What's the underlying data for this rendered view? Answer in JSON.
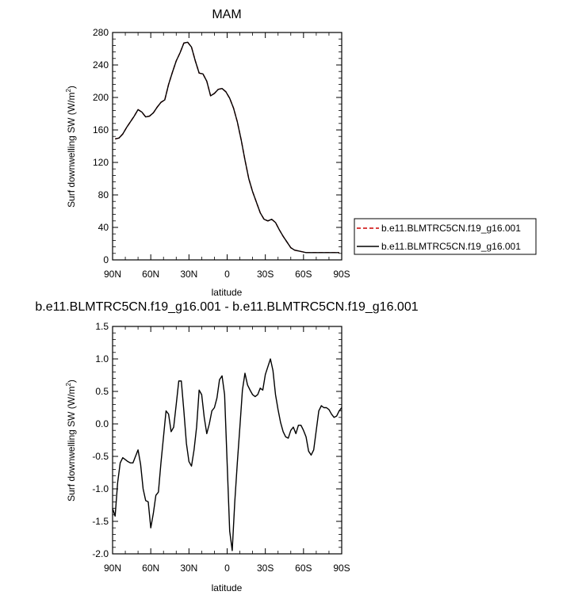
{
  "chart_data": [
    {
      "type": "line",
      "title": "MAM",
      "xlabel": "latitude",
      "ylabel": "Surf downwelling SW (W/m",
      "ylabel_sup": "2",
      "ylabel_close": ")",
      "xlim": [
        90,
        -90
      ],
      "ylim": [
        0,
        280
      ],
      "x_ticks": [
        90,
        60,
        30,
        0,
        -30,
        -60,
        -90
      ],
      "x_tick_labels": [
        "90N",
        "60N",
        "30N",
        "0",
        "30S",
        "60S",
        "90S"
      ],
      "y_ticks": [
        0,
        40,
        80,
        120,
        160,
        200,
        240,
        280
      ],
      "y_tick_labels": [
        "0",
        "40",
        "80",
        "120",
        "160",
        "200",
        "240",
        "280"
      ],
      "legend_position": "right",
      "series": [
        {
          "name": "b.e11.BLMTRC5CN.f19_g16.001",
          "color": "#cc0000",
          "dash": "dashed",
          "x": [
            88,
            85,
            82,
            79,
            76,
            73,
            70,
            67,
            64,
            61,
            58,
            55,
            52,
            49,
            46,
            43,
            40,
            37,
            34,
            31,
            28,
            25,
            22,
            19,
            16,
            13,
            10,
            7,
            4,
            1,
            -2,
            -5,
            -8,
            -11,
            -14,
            -17,
            -20,
            -23,
            -26,
            -29,
            -32,
            -35,
            -38,
            -41,
            -44,
            -47,
            -50,
            -53,
            -56,
            -59,
            -62,
            -65,
            -68,
            -71,
            -74,
            -77,
            -80,
            -83,
            -86,
            -88
          ],
          "y": [
            149,
            150,
            155,
            163,
            170,
            177,
            185,
            182,
            176,
            177,
            181,
            188,
            194,
            197,
            216,
            231,
            245,
            255,
            267,
            268,
            262,
            245,
            230,
            229,
            220,
            202,
            205,
            210,
            211,
            207,
            199,
            187,
            170,
            148,
            123,
            100,
            84,
            71,
            58,
            50,
            48,
            50,
            46,
            37,
            29,
            22,
            15,
            12,
            11,
            10,
            9,
            9,
            9,
            9,
            9,
            9,
            9,
            9,
            9,
            9
          ]
        },
        {
          "name": "b.e11.BLMTRC5CN.f19_g16.001",
          "color": "#000000",
          "dash": "solid",
          "x": [
            88,
            85,
            82,
            79,
            76,
            73,
            70,
            67,
            64,
            61,
            58,
            55,
            52,
            49,
            46,
            43,
            40,
            37,
            34,
            31,
            28,
            25,
            22,
            19,
            16,
            13,
            10,
            7,
            4,
            1,
            -2,
            -5,
            -8,
            -11,
            -14,
            -17,
            -20,
            -23,
            -26,
            -29,
            -32,
            -35,
            -38,
            -41,
            -44,
            -47,
            -50,
            -53,
            -56,
            -59,
            -62,
            -65,
            -68,
            -71,
            -74,
            -77,
            -80,
            -83,
            -86,
            -88
          ],
          "y": [
            149,
            150,
            155,
            163,
            170,
            177,
            185,
            182,
            176,
            177,
            181,
            188,
            194,
            197,
            216,
            231,
            245,
            255,
            267,
            268,
            262,
            245,
            230,
            229,
            220,
            202,
            205,
            210,
            211,
            207,
            199,
            187,
            170,
            148,
            123,
            100,
            84,
            71,
            58,
            50,
            48,
            50,
            46,
            37,
            29,
            22,
            15,
            12,
            11,
            10,
            9,
            9,
            9,
            9,
            9,
            9,
            9,
            9,
            9,
            9
          ]
        }
      ]
    },
    {
      "type": "line",
      "title": "b.e11.BLMTRC5CN.f19_g16.001 - b.e11.BLMTRC5CN.f19_g16.001",
      "xlabel": "latitude",
      "ylabel": "Surf downwelling SW (W/m",
      "ylabel_sup": "2",
      "ylabel_close": ")",
      "xlim": [
        90,
        -90
      ],
      "ylim": [
        -2.0,
        1.5
      ],
      "x_ticks": [
        90,
        60,
        30,
        0,
        -30,
        -60,
        -90
      ],
      "x_tick_labels": [
        "90N",
        "60N",
        "30N",
        "0",
        "30S",
        "60S",
        "90S"
      ],
      "y_ticks": [
        -2.0,
        -1.5,
        -1.0,
        -0.5,
        0.0,
        0.5,
        1.0,
        1.5
      ],
      "y_tick_labels": [
        "-2.0",
        "-1.5",
        "-1.0",
        "-0.5",
        "0.0",
        "0.5",
        "1.0",
        "1.5"
      ],
      "series": [
        {
          "color": "#000000",
          "dash": "solid",
          "x": [
            90,
            88,
            86,
            84,
            82,
            80,
            78,
            76,
            74,
            72,
            70,
            68,
            66,
            64,
            62,
            60,
            58,
            56,
            54,
            52,
            50,
            48,
            46,
            44,
            42,
            40,
            38,
            36,
            34,
            32,
            30,
            28,
            26,
            24,
            22,
            20,
            18,
            16,
            14,
            12,
            10,
            8,
            6,
            4,
            2,
            0,
            -2,
            -4,
            -6,
            -8,
            -10,
            -12,
            -14,
            -16,
            -18,
            -20,
            -22,
            -24,
            -26,
            -28,
            -30,
            -32,
            -34,
            -36,
            -38,
            -40,
            -42,
            -44,
            -46,
            -48,
            -50,
            -52,
            -54,
            -56,
            -58,
            -60,
            -62,
            -64,
            -66,
            -68,
            -70,
            -72,
            -74,
            -76,
            -78,
            -80,
            -82,
            -84,
            -86,
            -88,
            -90
          ],
          "y": [
            -1.3,
            -1.42,
            -0.9,
            -0.6,
            -0.52,
            -0.55,
            -0.58,
            -0.6,
            -0.6,
            -0.5,
            -0.4,
            -0.62,
            -1.0,
            -1.18,
            -1.2,
            -1.6,
            -1.38,
            -1.1,
            -1.05,
            -0.6,
            -0.2,
            0.2,
            0.15,
            -0.12,
            -0.05,
            0.3,
            0.66,
            0.66,
            0.2,
            -0.3,
            -0.58,
            -0.65,
            -0.4,
            -0.05,
            0.52,
            0.45,
            0.1,
            -0.15,
            0.0,
            0.2,
            0.25,
            0.4,
            0.68,
            0.74,
            0.45,
            -0.6,
            -1.65,
            -1.95,
            -1.2,
            -0.6,
            -0.05,
            0.52,
            0.78,
            0.6,
            0.52,
            0.45,
            0.42,
            0.45,
            0.55,
            0.52,
            0.76,
            0.88,
            1.0,
            0.82,
            0.45,
            0.22,
            0.02,
            -0.12,
            -0.2,
            -0.22,
            -0.1,
            -0.05,
            -0.15,
            -0.02,
            -0.02,
            -0.1,
            -0.2,
            -0.42,
            -0.48,
            -0.4,
            -0.1,
            0.2,
            0.28,
            0.25,
            0.25,
            0.22,
            0.15,
            0.1,
            0.12,
            0.2,
            0.25
          ]
        }
      ]
    }
  ]
}
